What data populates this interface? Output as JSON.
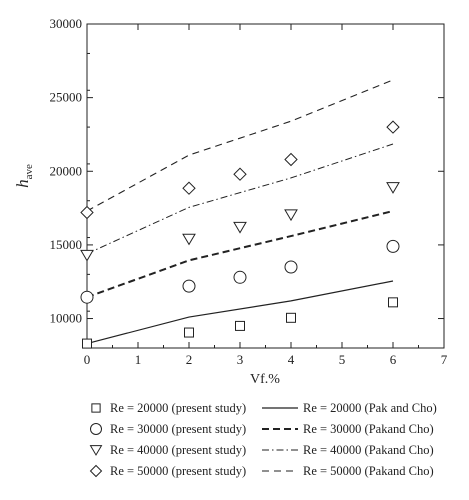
{
  "chart_data": {
    "type": "scatter",
    "xlabel": "Vf.%",
    "ylabel": "h",
    "ylabel_sub": "ave",
    "xlim": [
      0,
      7
    ],
    "ylim": [
      8000,
      30000
    ],
    "xticks": [
      0,
      1,
      2,
      3,
      4,
      5,
      6,
      7
    ],
    "yticks": [
      10000,
      15000,
      20000,
      25000,
      30000
    ],
    "grid": false,
    "legend_position": "bottom",
    "series": [
      {
        "name": "Re = 20000 (present study)",
        "kind": "marker",
        "marker": "square",
        "x": [
          0,
          2,
          3,
          4,
          6
        ],
        "y": [
          8300,
          9050,
          9500,
          10050,
          11100
        ]
      },
      {
        "name": "Re = 30000 (present study)",
        "kind": "marker",
        "marker": "circle",
        "x": [
          0,
          2,
          3,
          4,
          6
        ],
        "y": [
          11450,
          12200,
          12800,
          13500,
          14900
        ]
      },
      {
        "name": "Re = 40000 (present study)",
        "kind": "marker",
        "marker": "triangle-down",
        "x": [
          0,
          2,
          3,
          4,
          6
        ],
        "y": [
          14300,
          15400,
          16200,
          17050,
          18900
        ]
      },
      {
        "name": "Re = 50000 (present study)",
        "kind": "marker",
        "marker": "diamond",
        "x": [
          0,
          2,
          3,
          4,
          6
        ],
        "y": [
          17200,
          18850,
          19800,
          20800,
          23000
        ]
      },
      {
        "name": "Re = 20000 (Pak and Cho)",
        "kind": "line",
        "dash": "solid",
        "x": [
          0,
          2,
          4,
          6
        ],
        "y": [
          8300,
          10100,
          11200,
          12550
        ]
      },
      {
        "name": "Re = 30000 (Pakand Cho)",
        "kind": "line",
        "dash": "dashed-thick",
        "x": [
          0,
          2,
          4,
          6
        ],
        "y": [
          11450,
          13950,
          15600,
          17300
        ]
      },
      {
        "name": "Re = 40000 (Pakand Cho)",
        "kind": "line",
        "dash": "dash-dot",
        "x": [
          0,
          2,
          4,
          6
        ],
        "y": [
          14400,
          17550,
          19550,
          21850
        ]
      },
      {
        "name": "Re = 50000 (Pakand Cho)",
        "kind": "line",
        "dash": "dashed",
        "x": [
          0,
          2,
          4,
          6
        ],
        "y": [
          17300,
          21100,
          23400,
          26200
        ]
      }
    ]
  }
}
